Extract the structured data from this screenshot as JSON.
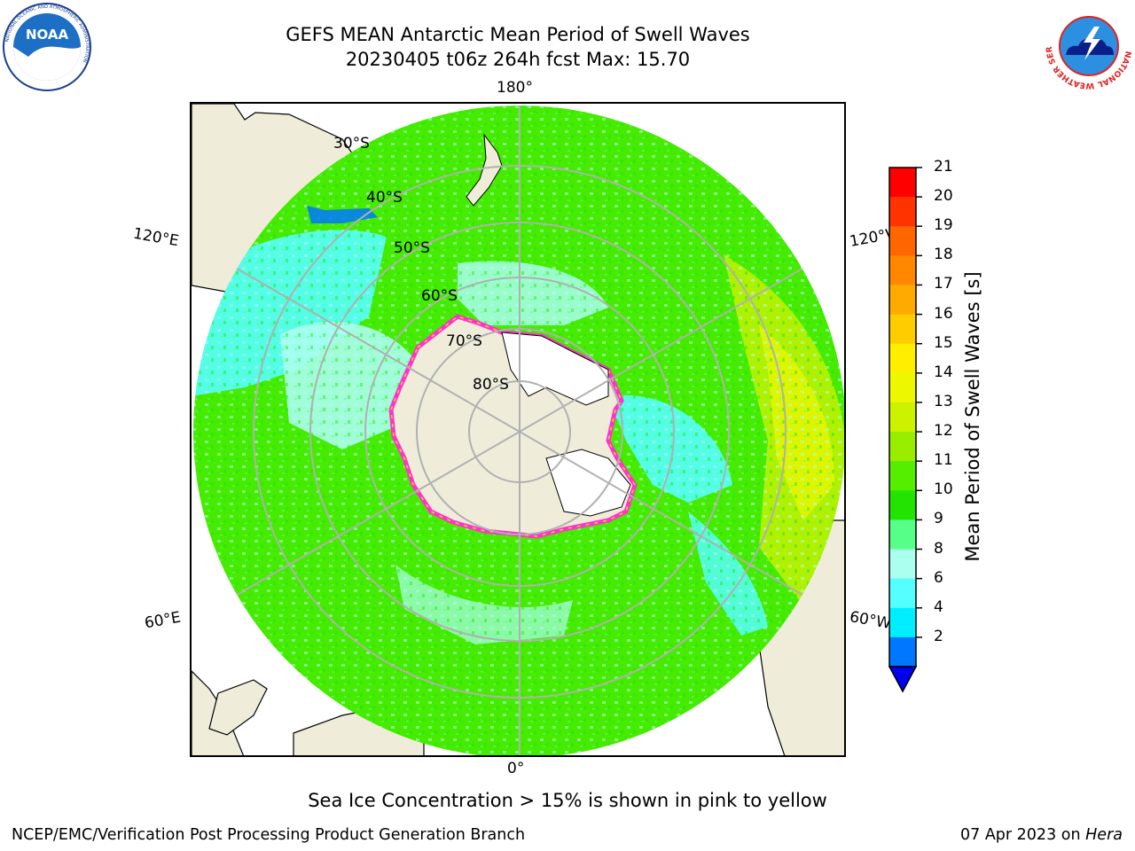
{
  "title_line1": "GEFS MEAN Antarctic Mean Period of Swell Waves",
  "title_line2": "20230405 t06z 264h fcst   Max: 15.70",
  "logos": {
    "noaa_text": "NOAA",
    "noaa_ring_top": "NATIONAL OCEANIC AND ATMOSPHERIC ADMINISTRATION",
    "noaa_ring_bottom": "U.S. DEPARTMENT OF COMMERCE",
    "nws_ring": "NATIONAL WEATHER SERVICE"
  },
  "map": {
    "longitude_labels": {
      "top": "180°",
      "bottom": "0°",
      "upper_left": "120°E",
      "upper_right": "120°W",
      "lower_left": "60°E",
      "lower_right": "60°W"
    },
    "latitude_labels": [
      "30°S",
      "40°S",
      "50°S",
      "60°S",
      "70°S",
      "80°S"
    ],
    "land_color": "#efedda",
    "ice_outline_colors": [
      "#ff33cc",
      "#ffcc33"
    ]
  },
  "colorbar": {
    "label": "Mean Period of Swell Waves [s]",
    "ticks": [
      "21",
      "20",
      "19",
      "18",
      "17",
      "16",
      "15",
      "14",
      "13",
      "12",
      "11",
      "10",
      "9",
      "8",
      "6",
      "4",
      "2"
    ],
    "colors_top_to_bottom": [
      "#ff0000",
      "#ff3300",
      "#ff6600",
      "#ff8800",
      "#ffaa00",
      "#ffcc00",
      "#ffee00",
      "#ecf700",
      "#ccf200",
      "#99ee00",
      "#55ee00",
      "#22e400",
      "#55ff88",
      "#aaffee",
      "#55ffff",
      "#00eeff",
      "#0077ff"
    ],
    "extend_color": "#0000ee"
  },
  "footer_note": "Sea Ice Concentration > 15% is shown in pink to yellow",
  "credit": "NCEP/EMC/Verification Post Processing Product Generation Branch",
  "date": "07 Apr 2023 on ",
  "host": "Hera"
}
